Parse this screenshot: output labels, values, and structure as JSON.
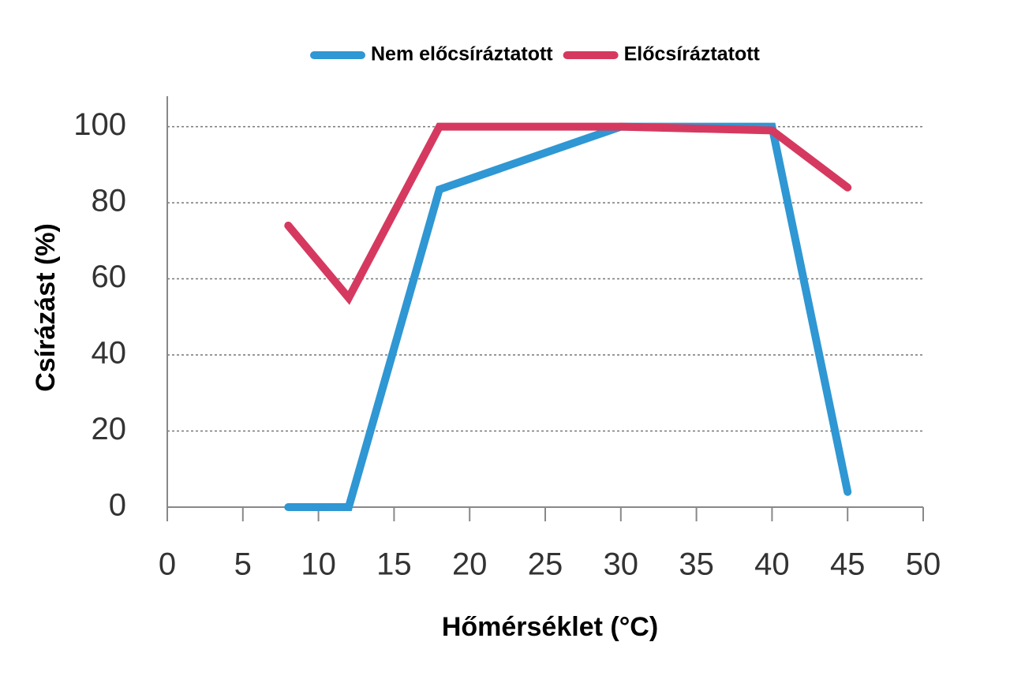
{
  "chart_data": {
    "type": "line",
    "x_label": "Hőmérséklet (°C)",
    "y_label": "Csírázást (%)",
    "x": [
      8,
      12,
      18,
      30,
      40,
      45
    ],
    "series": [
      {
        "name": "Nem előcsíráztatott",
        "color": "#2f97d3",
        "values": [
          0,
          0,
          83.5,
          100,
          100,
          4
        ]
      },
      {
        "name": "Előcsíráztatott",
        "color": "#d6395f",
        "values": [
          74,
          55,
          100,
          100,
          99,
          84
        ]
      }
    ],
    "xlim": [
      0,
      50
    ],
    "xticks": [
      0,
      5,
      10,
      15,
      20,
      25,
      30,
      35,
      40,
      45,
      50
    ],
    "ylim": [
      0,
      108
    ],
    "yticks": [
      0,
      20,
      40,
      60,
      80,
      100
    ],
    "grid": true,
    "legend": "upper center"
  }
}
